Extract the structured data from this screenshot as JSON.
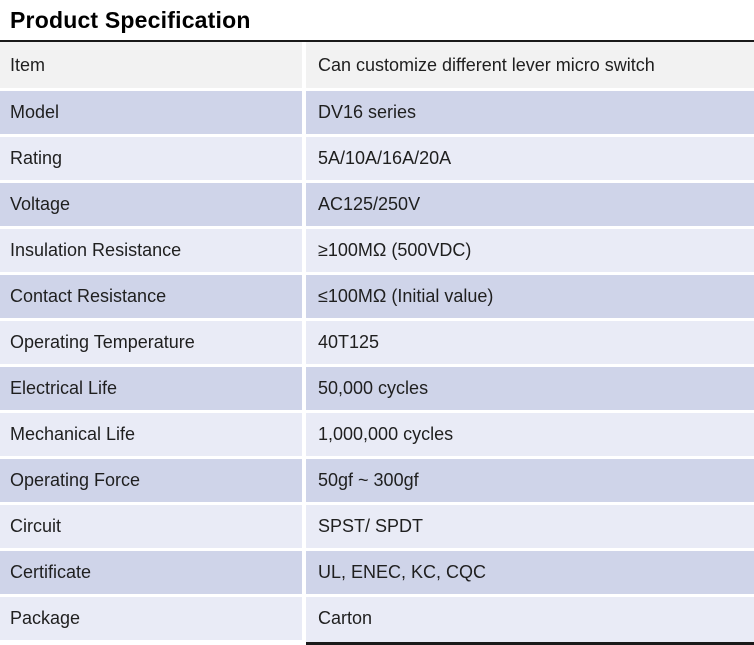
{
  "title": "Product Specification",
  "colors": {
    "row_gray": "#f2f2f2",
    "row_dark": "#cfd4e9",
    "row_light": "#e9ebf6",
    "border": "#1a1a1a",
    "text": "#1f1f1f"
  },
  "table": {
    "rows": [
      {
        "label": "Item",
        "value": "Can customize different lever micro switch",
        "tone": "gray"
      },
      {
        "label": "Model",
        "value": "DV16 series",
        "tone": "dark"
      },
      {
        "label": "Rating",
        "value": "5A/10A/16A/20A",
        "tone": "light"
      },
      {
        "label": "Voltage",
        "value": "AC125/250V",
        "tone": "dark"
      },
      {
        "label": "Insulation Resistance",
        "value": "≥100MΩ (500VDC)",
        "tone": "light"
      },
      {
        "label": "Contact Resistance",
        "value": "≤100MΩ (Initial value)",
        "tone": "dark"
      },
      {
        "label": "Operating Temperature",
        "value": "40T125",
        "tone": "light"
      },
      {
        "label": "Electrical Life",
        "value": "50,000 cycles",
        "tone": "dark"
      },
      {
        "label": "Mechanical Life",
        "value": "1,000,000 cycles",
        "tone": "light"
      },
      {
        "label": "Operating Force",
        "value": "50gf ~ 300gf",
        "tone": "dark"
      },
      {
        "label": "Circuit",
        "value": "SPST/ SPDT",
        "tone": "light"
      },
      {
        "label": "Certificate",
        "value": "UL, ENEC, KC, CQC",
        "tone": "dark"
      },
      {
        "label": "Package",
        "value": "Carton",
        "tone": "light"
      }
    ]
  }
}
